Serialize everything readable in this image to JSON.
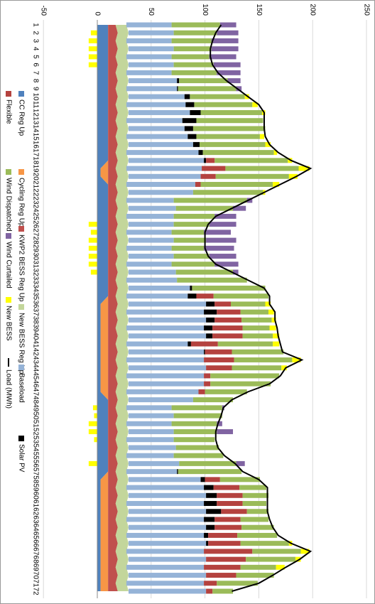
{
  "chart_data": {
    "type": "bar",
    "categories": [
      "1",
      "2",
      "3",
      "4",
      "5",
      "6",
      "7",
      "8",
      "9",
      "10",
      "11",
      "12",
      "13",
      "14",
      "15",
      "16",
      "17",
      "18",
      "19",
      "20",
      "21",
      "22",
      "23",
      "24",
      "25",
      "26",
      "27",
      "28",
      "29",
      "30",
      "31",
      "32",
      "33",
      "34",
      "35",
      "36",
      "37",
      "38",
      "39",
      "40",
      "41",
      "42",
      "43",
      "44",
      "45",
      "46",
      "47",
      "48",
      "49",
      "50",
      "51",
      "52",
      "53",
      "54",
      "55",
      "56",
      "57",
      "58",
      "59",
      "60",
      "61",
      "62",
      "63",
      "64",
      "65",
      "66",
      "67",
      "68",
      "69",
      "70",
      "71",
      "72"
    ],
    "ylim": [
      -50,
      250
    ],
    "yticks": [
      -50,
      0,
      50,
      100,
      150,
      200,
      250
    ],
    "grid": true,
    "series": [
      {
        "name": "CC Reg Up",
        "type": "area",
        "color": "#4f81bd",
        "values": [
          10,
          10,
          10,
          10,
          10,
          10,
          10,
          10,
          10,
          10,
          10,
          10,
          10,
          10,
          10,
          10,
          10,
          10,
          3,
          3,
          10,
          10,
          10,
          10,
          10,
          10,
          10,
          10,
          10,
          10,
          10,
          10,
          10,
          10,
          10,
          3,
          3,
          3,
          3,
          3,
          3,
          3,
          3,
          3,
          3,
          3,
          3,
          10,
          10,
          10,
          10,
          10,
          10,
          10,
          10,
          10,
          10,
          3,
          3,
          3,
          3,
          3,
          3,
          3,
          3,
          3,
          3,
          3,
          3,
          3,
          3,
          3
        ]
      },
      {
        "name": "Cycling Reg Up",
        "type": "area",
        "color": "#f79646",
        "values": [
          0,
          0,
          0,
          0,
          0,
          0,
          0,
          0,
          0,
          0,
          0,
          0,
          0,
          0,
          0,
          0,
          0,
          0,
          7,
          7,
          0,
          0,
          0,
          0,
          0,
          0,
          0,
          0,
          0,
          0,
          0,
          0,
          0,
          0,
          0,
          7,
          7,
          7,
          7,
          7,
          7,
          7,
          7,
          7,
          7,
          7,
          7,
          0,
          0,
          0,
          0,
          0,
          0,
          0,
          0,
          0,
          0,
          7,
          7,
          7,
          7,
          7,
          7,
          7,
          7,
          7,
          7,
          7,
          7,
          7,
          7,
          7
        ]
      },
      {
        "name": "KWP2 BESS Reg Up",
        "type": "area",
        "color": "#c0504d",
        "values": [
          7,
          9,
          7,
          9,
          7,
          9,
          7,
          9,
          7,
          9,
          7,
          9,
          7,
          9,
          7,
          9,
          7,
          9,
          7,
          9,
          7,
          9,
          7,
          9,
          7,
          9,
          7,
          9,
          7,
          9,
          7,
          9,
          7,
          9,
          7,
          9,
          7,
          9,
          7,
          9,
          7,
          9,
          7,
          9,
          7,
          9,
          7,
          9,
          7,
          9,
          7,
          9,
          7,
          9,
          7,
          9,
          7,
          9,
          7,
          9,
          7,
          9,
          7,
          9,
          7,
          9,
          7,
          9,
          7,
          9,
          7,
          9
        ]
      },
      {
        "name": "New BESS Reg Up",
        "type": "area",
        "color": "#c3d69b",
        "values": [
          10,
          10,
          10,
          10,
          10,
          10,
          10,
          10,
          10,
          10,
          10,
          10,
          10,
          10,
          10,
          10,
          10,
          10,
          10,
          10,
          10,
          10,
          10,
          10,
          10,
          10,
          10,
          10,
          10,
          10,
          10,
          10,
          10,
          10,
          10,
          10,
          10,
          10,
          10,
          10,
          10,
          10,
          10,
          10,
          10,
          10,
          10,
          10,
          10,
          10,
          10,
          10,
          10,
          10,
          10,
          10,
          10,
          10,
          10,
          10,
          10,
          10,
          10,
          10,
          10,
          10,
          10,
          10,
          10,
          10,
          10,
          10
        ]
      },
      {
        "name": "Baseload",
        "type": "bar",
        "color": "#95b3d7",
        "values": [
          42,
          42,
          42,
          42,
          42,
          42,
          42,
          45,
          47,
          52,
          55,
          57,
          52,
          52,
          57,
          60,
          67,
          70,
          70,
          67,
          64,
          60,
          44,
          44,
          44,
          42,
          42,
          42,
          42,
          42,
          42,
          44,
          47,
          57,
          57,
          72,
          72,
          72,
          72,
          72,
          57,
          70,
          72,
          72,
          72,
          70,
          67,
          60,
          42,
          42,
          42,
          42,
          44,
          44,
          44,
          47,
          47,
          67,
          72,
          72,
          72,
          72,
          72,
          72,
          72,
          72,
          72,
          72,
          72,
          72,
          72,
          72
        ]
      },
      {
        "name": "Solar PV",
        "type": "bar",
        "color": "#000000",
        "values": [
          0,
          0,
          0,
          0,
          0,
          0,
          0,
          2,
          1,
          5,
          8,
          10,
          13,
          8,
          8,
          6,
          4,
          2,
          0,
          0,
          0,
          0,
          0,
          0,
          0,
          0,
          0,
          0,
          0,
          0,
          0,
          0,
          0,
          2,
          8,
          8,
          12,
          8,
          8,
          6,
          3,
          1,
          0,
          0,
          0,
          0,
          0,
          0,
          0,
          0,
          0,
          0,
          0,
          0,
          0,
          0,
          1,
          4,
          9,
          10,
          12,
          14,
          10,
          8,
          4,
          2,
          0,
          0,
          0,
          0,
          0,
          0
        ]
      },
      {
        "name": "Flexible",
        "type": "bar",
        "color": "#b4423f",
        "values": [
          0,
          0,
          0,
          0,
          0,
          0,
          0,
          0,
          0,
          0,
          0,
          0,
          0,
          0,
          0,
          0,
          0,
          8,
          22,
          14,
          5,
          0,
          0,
          0,
          0,
          0,
          0,
          0,
          0,
          0,
          0,
          0,
          0,
          0,
          16,
          15,
          22,
          25,
          28,
          28,
          25,
          25,
          28,
          24,
          6,
          6,
          6,
          0,
          0,
          0,
          0,
          0,
          0,
          0,
          0,
          0,
          0,
          14,
          24,
          24,
          24,
          24,
          24,
          25,
          27,
          30,
          45,
          37,
          34,
          28,
          12,
          6
        ]
      },
      {
        "name": "Wind Dispatched",
        "type": "bar",
        "color": "#9bbb59",
        "values": [
          45,
          40,
          37,
          35,
          35,
          37,
          42,
          45,
          54,
          51,
          54,
          57,
          62,
          67,
          59,
          61,
          66,
          68,
          68,
          68,
          67,
          65,
          68,
          53,
          38,
          33,
          30,
          30,
          30,
          33,
          40,
          53,
          65,
          68,
          51,
          32,
          26,
          28,
          25,
          28,
          51,
          48,
          54,
          46,
          64,
          56,
          39,
          37,
          47,
          45,
          42,
          40,
          38,
          40,
          46,
          53,
          59,
          37,
          25,
          24,
          22,
          20,
          26,
          30,
          37,
          45,
          45,
          46,
          33,
          35,
          38,
          19
        ]
      },
      {
        "name": "Wind Curtailed",
        "type": "bar",
        "color": "#8064a2",
        "values": [
          15,
          20,
          25,
          25,
          25,
          25,
          22,
          12,
          5,
          0,
          0,
          0,
          0,
          0,
          0,
          0,
          0,
          0,
          0,
          0,
          0,
          0,
          5,
          12,
          20,
          25,
          25,
          28,
          28,
          25,
          22,
          5,
          0,
          0,
          0,
          0,
          0,
          0,
          0,
          0,
          0,
          0,
          0,
          0,
          0,
          0,
          0,
          0,
          2,
          0,
          5,
          15,
          0,
          0,
          0,
          8,
          0,
          0,
          0,
          0,
          0,
          0,
          0,
          0,
          0,
          0,
          0,
          0,
          0,
          0,
          0,
          0
        ]
      },
      {
        "name": "New BESS",
        "type": "bar",
        "color": "#ffff00",
        "values": [
          0,
          -6,
          -8,
          -8,
          -8,
          -8,
          0,
          0,
          0,
          4,
          5,
          3,
          0,
          0,
          4,
          5,
          3,
          4,
          10,
          8,
          6,
          2,
          0,
          0,
          0,
          -8,
          -6,
          -8,
          -8,
          -8,
          -8,
          -6,
          0,
          0,
          0,
          5,
          5,
          4,
          6,
          6,
          6,
          0,
          8,
          5,
          0,
          0,
          0,
          0,
          -4,
          -3,
          -8,
          -8,
          -3,
          0,
          0,
          -8,
          0,
          0,
          0,
          0,
          0,
          0,
          0,
          0,
          0,
          3,
          8,
          5,
          8,
          0,
          0,
          0
        ]
      },
      {
        "name": "Load (MWh)",
        "type": "line",
        "color": "#000000",
        "values": [
          115,
          110,
          107,
          105,
          105,
          107,
          112,
          120,
          130,
          140,
          150,
          155,
          155,
          155,
          156,
          160,
          168,
          180,
          198,
          185,
          170,
          155,
          140,
          125,
          110,
          103,
          100,
          100,
          100,
          103,
          110,
          125,
          140,
          155,
          160,
          160,
          165,
          165,
          167,
          168,
          170,
          172,
          190,
          175,
          170,
          160,
          140,
          125,
          117,
          115,
          112,
          110,
          110,
          112,
          118,
          128,
          135,
          150,
          158,
          158,
          158,
          158,
          160,
          163,
          168,
          180,
          198,
          188,
          175,
          163,
          150,
          125
        ]
      }
    ]
  }
}
